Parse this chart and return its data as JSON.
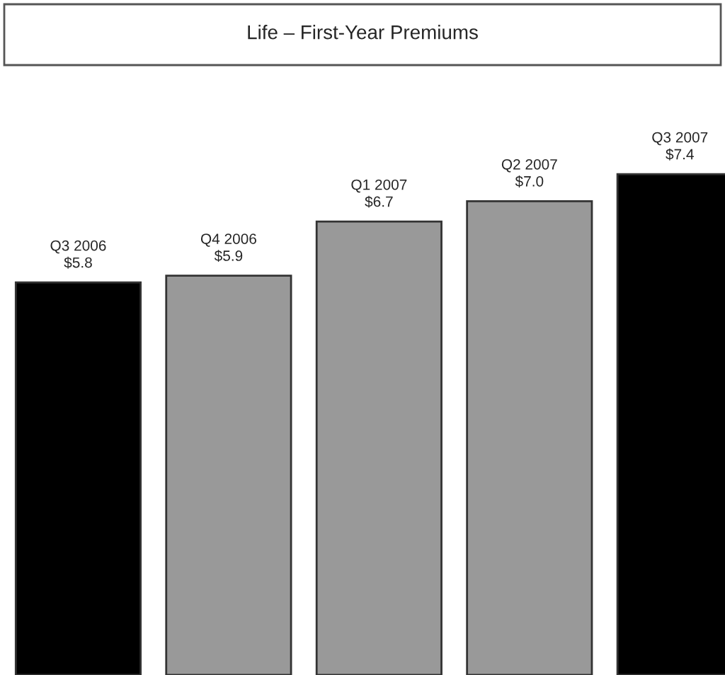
{
  "chart_data": {
    "type": "bar",
    "title": "Life – First-Year Premiums",
    "categories": [
      "Q3 2006",
      "Q4 2006",
      "Q1 2007",
      "Q2 2007",
      "Q3 2007"
    ],
    "values": [
      5.8,
      5.9,
      6.7,
      7.0,
      7.4
    ],
    "value_labels": [
      "$5.8",
      "$5.9",
      "$6.7",
      "$7.0",
      "$7.4"
    ],
    "colors": [
      "#000000",
      "#999999",
      "#999999",
      "#999999",
      "#000000"
    ]
  }
}
